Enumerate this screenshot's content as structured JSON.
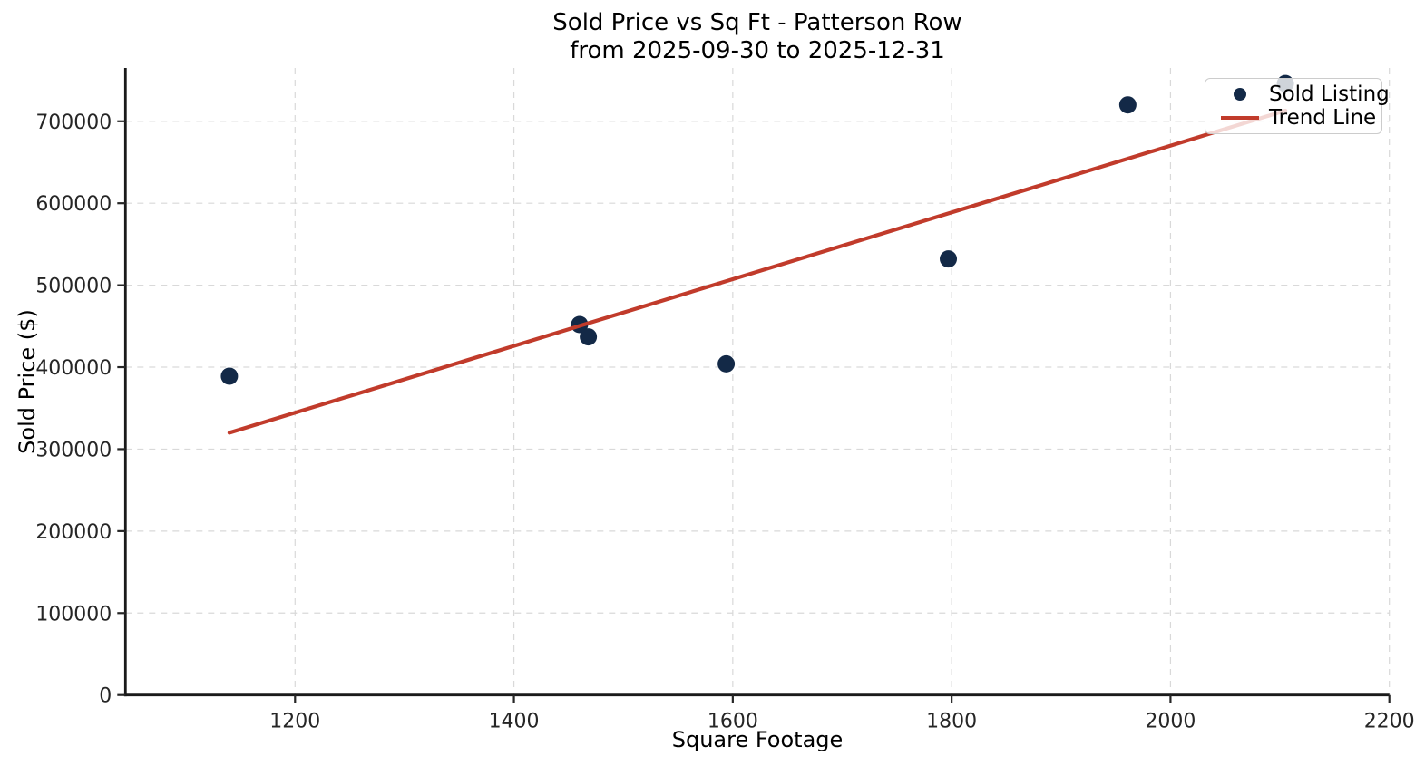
{
  "figure": {
    "title_line1": "Sold Price vs Sq Ft - Patterson Row",
    "title_line2": "from 2025-09-30 to 2025-12-31",
    "xlabel": "Square Footage",
    "ylabel": "Sold Price ($)"
  },
  "legend": {
    "position": "upper right",
    "items": [
      {
        "label": "Sold Listing",
        "marker": "dot",
        "color": "#132947"
      },
      {
        "label": "Trend Line",
        "marker": "line",
        "color": "#c13b2b"
      }
    ]
  },
  "colors": {
    "scatter_point": "#132947",
    "trend_line": "#c13b2b",
    "gridline": "#d9d9d9",
    "spine": "#1a1a1a",
    "tick_label": "#262626",
    "legend_background": "rgba(255,255,255,0.8)"
  },
  "chart_data": {
    "type": "scatter",
    "title": "Sold Price vs Sq Ft - Patterson Row\nfrom 2025-09-30 to 2025-12-31",
    "xlabel": "Square Footage",
    "ylabel": "Sold Price ($)",
    "xlim": [
      1045,
      2200
    ],
    "ylim": [
      0,
      765000
    ],
    "x_ticks": [
      1200,
      1400,
      1600,
      1800,
      2000,
      2200
    ],
    "y_ticks": [
      0,
      100000,
      200000,
      300000,
      400000,
      500000,
      600000,
      700000
    ],
    "grid": true,
    "legend_position": "upper right",
    "series": [
      {
        "name": "Sold Listing",
        "type": "scatter",
        "color": "#132947",
        "points": [
          [
            1140,
            389000
          ],
          [
            1460,
            452000
          ],
          [
            1468,
            437000
          ],
          [
            1594,
            404000
          ],
          [
            1797,
            532000
          ],
          [
            1961,
            720000
          ],
          [
            2105,
            746000
          ]
        ]
      },
      {
        "name": "Trend Line",
        "type": "line",
        "color": "#c13b2b",
        "points": [
          [
            1140,
            320000
          ],
          [
            2105,
            713000
          ]
        ]
      }
    ]
  }
}
